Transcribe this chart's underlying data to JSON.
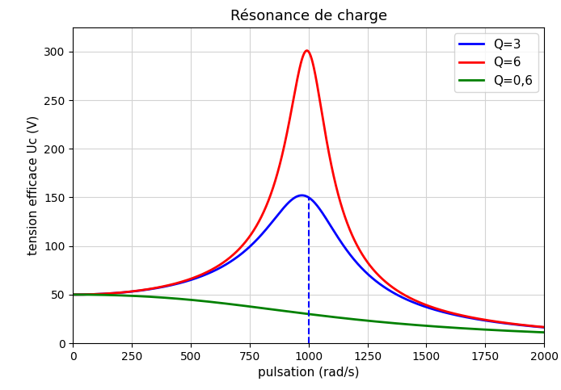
{
  "title": "Résonance de charge",
  "xlabel": "pulsation (rad/s)",
  "ylabel": "tension efficace Uc (V)",
  "xlim": [
    0,
    2000
  ],
  "ylim": [
    0,
    325
  ],
  "omega_0": 1000,
  "U": 50,
  "Q_values": [
    3,
    6,
    0.6
  ],
  "Q_labels": [
    "Q=3",
    "Q=6",
    "Q=0,6"
  ],
  "Q_colors": [
    "blue",
    "red",
    "green"
  ],
  "dashed_line_x": 1000,
  "dashed_line_color": "blue",
  "grid": true,
  "legend_loc": "upper right",
  "title_fontsize": 13,
  "label_fontsize": 11,
  "tick_fontsize": 10,
  "line_width": 2.0,
  "figsize": [
    6.94,
    4.83
  ],
  "dpi": 100,
  "yticks": [
    0,
    50,
    100,
    150,
    200,
    250,
    300
  ],
  "xticks": [
    0,
    250,
    500,
    750,
    1000,
    1250,
    1500,
    1750,
    2000
  ]
}
